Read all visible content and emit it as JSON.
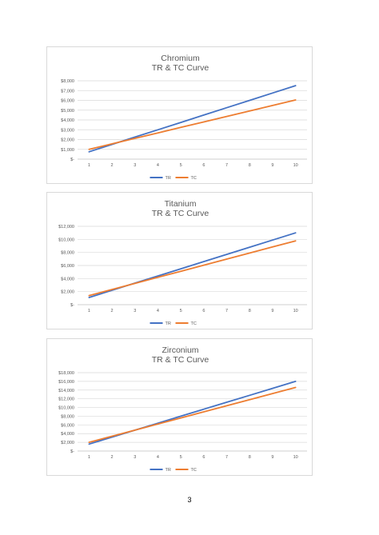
{
  "page": {
    "number": "3"
  },
  "colors": {
    "tr": "#4472c4",
    "tc": "#ed7d31",
    "grid": "#d9d9d9",
    "text": "#595959",
    "axis": "#bfbfbf"
  },
  "chart_data": [
    {
      "type": "line",
      "title": "Chromium",
      "subtitle": "TR & TC Curve",
      "categories": [
        "1",
        "2",
        "3",
        "4",
        "5",
        "6",
        "7",
        "8",
        "9",
        "10"
      ],
      "series": [
        {
          "name": "TR",
          "values": [
            750,
            1500,
            2250,
            3000,
            3750,
            4500,
            5250,
            6000,
            6750,
            7500
          ]
        },
        {
          "name": "TC",
          "values": [
            1000,
            1560,
            2120,
            2680,
            3240,
            3800,
            4360,
            4920,
            5480,
            6040
          ]
        }
      ],
      "ylim": [
        0,
        8000
      ],
      "yticks": [
        0,
        1000,
        2000,
        3000,
        4000,
        5000,
        6000,
        7000,
        8000
      ],
      "ytick_labels": [
        "$-",
        "$1,000",
        "$2,000",
        "$3,000",
        "$4,000",
        "$5,000",
        "$6,000",
        "$7,000",
        "$8,000"
      ],
      "grid": true,
      "legend": "bottom"
    },
    {
      "type": "line",
      "title": "Titanium",
      "subtitle": "TR & TC Curve",
      "categories": [
        "1",
        "2",
        "3",
        "4",
        "5",
        "6",
        "7",
        "8",
        "9",
        "10"
      ],
      "series": [
        {
          "name": "TR",
          "values": [
            1100,
            2200,
            3300,
            4400,
            5500,
            6600,
            7700,
            8800,
            9900,
            11000
          ]
        },
        {
          "name": "TC",
          "values": [
            1400,
            2330,
            3260,
            4190,
            5120,
            6050,
            6980,
            7910,
            8840,
            9770
          ]
        }
      ],
      "ylim": [
        0,
        12000
      ],
      "yticks": [
        0,
        2000,
        4000,
        6000,
        8000,
        10000,
        12000
      ],
      "ytick_labels": [
        "$-",
        "$2,000",
        "$4,000",
        "$6,000",
        "$8,000",
        "$10,000",
        "$12,000"
      ],
      "grid": true,
      "legend": "bottom"
    },
    {
      "type": "line",
      "title": "Zirconium",
      "subtitle": "TR & TC Curve",
      "categories": [
        "1",
        "2",
        "3",
        "4",
        "5",
        "6",
        "7",
        "8",
        "9",
        "10"
      ],
      "series": [
        {
          "name": "TR",
          "values": [
            1600,
            3200,
            4800,
            6400,
            8000,
            9600,
            11200,
            12800,
            14400,
            16000
          ]
        },
        {
          "name": "TC",
          "values": [
            2000,
            3400,
            4800,
            6200,
            7600,
            9000,
            10400,
            11800,
            13200,
            14600
          ]
        }
      ],
      "ylim": [
        0,
        18000
      ],
      "yticks": [
        0,
        2000,
        4000,
        6000,
        8000,
        10000,
        12000,
        14000,
        16000,
        18000
      ],
      "ytick_labels": [
        "$-",
        "$2,000",
        "$4,000",
        "$6,000",
        "$8,000",
        "$10,000",
        "$12,000",
        "$14,000",
        "$16,000",
        "$18,000"
      ],
      "grid": true,
      "legend": "bottom"
    }
  ]
}
